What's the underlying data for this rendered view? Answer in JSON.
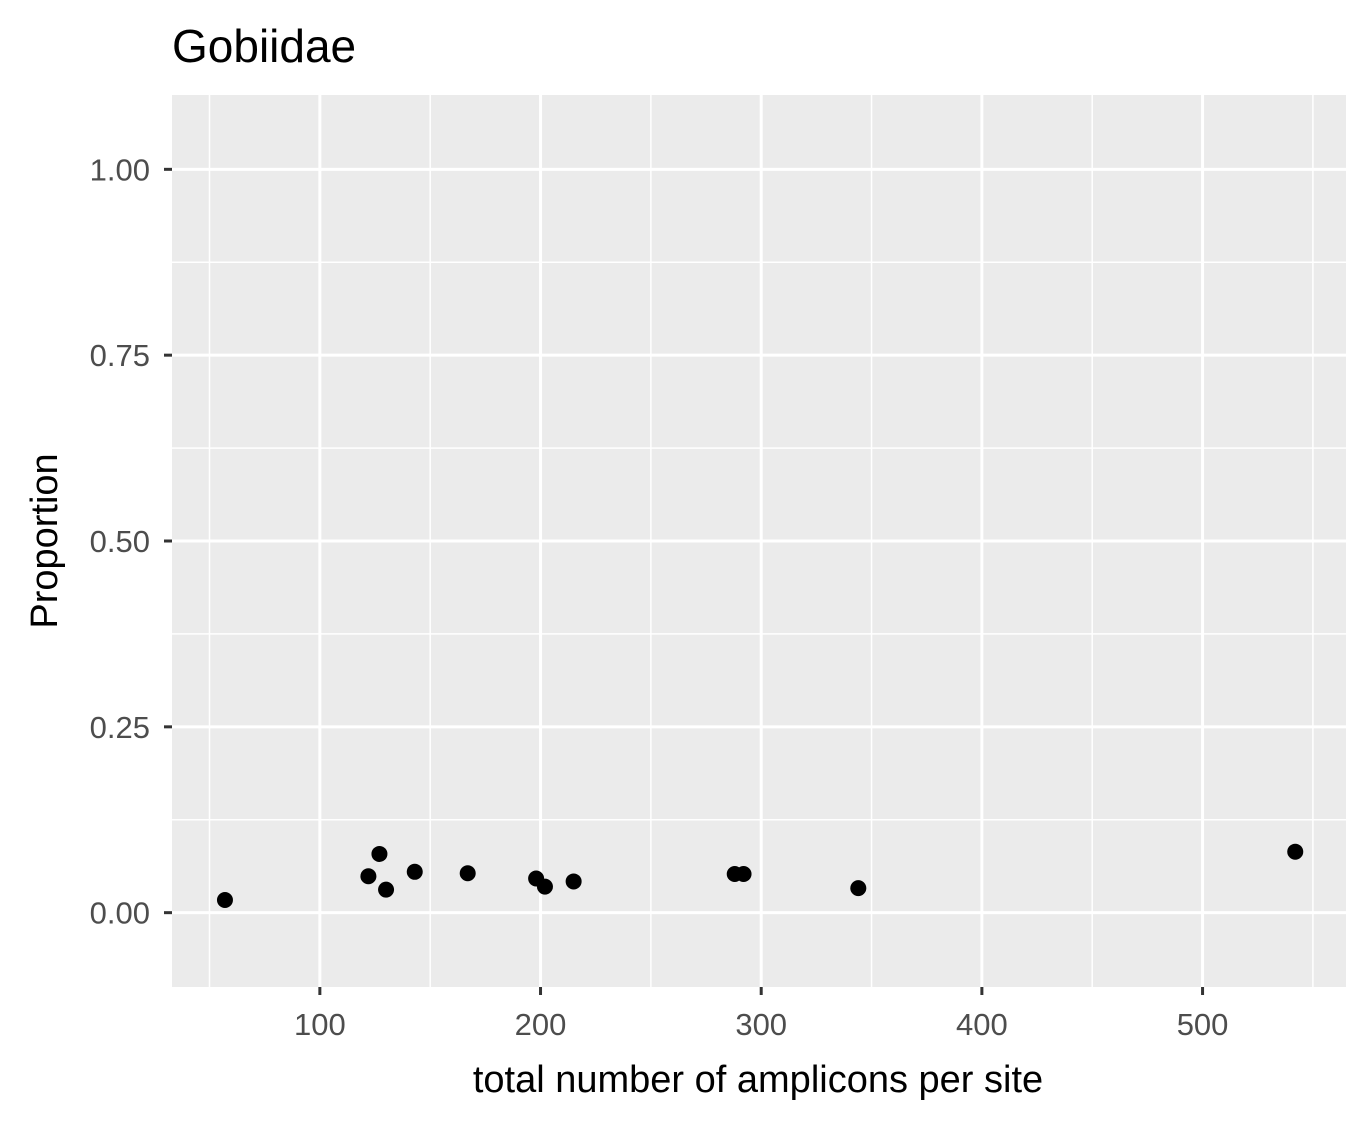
{
  "chart_data": {
    "type": "scatter",
    "title": "Gobiidae",
    "xlabel": "total number of amplicons per site",
    "ylabel": "Proportion",
    "xlim": [
      33,
      565
    ],
    "ylim": [
      -0.1,
      1.1
    ],
    "x_ticks": [
      100,
      200,
      300,
      400,
      500
    ],
    "y_ticks": [
      0.0,
      0.25,
      0.5,
      0.75,
      1.0
    ],
    "x_tick_labels": [
      "100",
      "200",
      "300",
      "400",
      "500"
    ],
    "y_tick_labels": [
      "0.00",
      "0.25",
      "0.50",
      "0.75",
      "1.00"
    ],
    "grid": true,
    "colors": {
      "panel_background": "#ebebeb",
      "grid": "#ffffff",
      "point": "#000000",
      "tick": "#333333"
    },
    "points": [
      {
        "x": 57,
        "y": 0.017
      },
      {
        "x": 122,
        "y": 0.049
      },
      {
        "x": 127,
        "y": 0.079
      },
      {
        "x": 130,
        "y": 0.031
      },
      {
        "x": 143,
        "y": 0.055
      },
      {
        "x": 167,
        "y": 0.053
      },
      {
        "x": 198,
        "y": 0.046
      },
      {
        "x": 202,
        "y": 0.035
      },
      {
        "x": 215,
        "y": 0.042
      },
      {
        "x": 288,
        "y": 0.052
      },
      {
        "x": 292,
        "y": 0.052
      },
      {
        "x": 344,
        "y": 0.033
      },
      {
        "x": 542,
        "y": 0.082
      }
    ]
  }
}
